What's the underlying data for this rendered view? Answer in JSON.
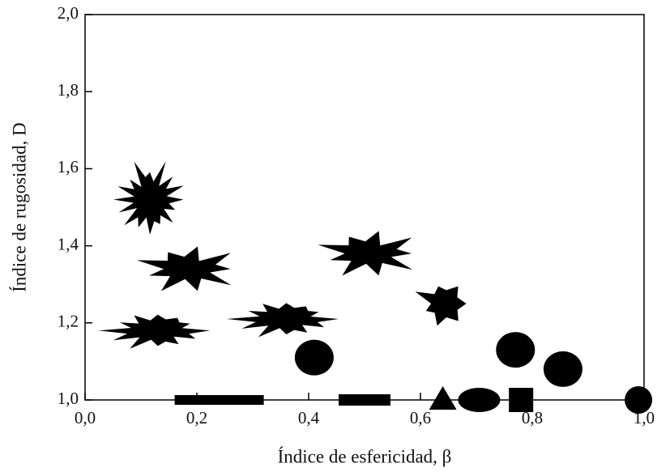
{
  "chart_data": {
    "type": "scatter",
    "xlabel": "Índice de esfericidad, β",
    "ylabel": "Índice de rugosidad, D",
    "x": [
      0.116,
      0.186,
      0.13,
      0.36,
      0.41,
      0.51,
      0.64,
      0.77,
      0.855,
      0.24,
      0.5,
      0.64,
      0.705,
      0.78,
      0.99
    ],
    "values": [
      1.52,
      1.34,
      1.18,
      1.21,
      1.11,
      1.38,
      1.25,
      1.13,
      1.08,
      1.0,
      1.0,
      1.0,
      1.0,
      1.0,
      1.0
    ],
    "markers": [
      "fractal",
      "spiky",
      "wavy",
      "wavy",
      "blob",
      "spiky",
      "lobed",
      "blob",
      "blob",
      "long-bar",
      "bar",
      "triangle",
      "ellipse",
      "square",
      "circle"
    ],
    "color": "#000000",
    "xlim": [
      0,
      1
    ],
    "ylim": [
      1,
      2
    ],
    "xticks": [
      {
        "value": 0,
        "label": "0,0"
      },
      {
        "value": 0.2,
        "label": "0,2"
      },
      {
        "value": 0.4,
        "label": "0,4"
      },
      {
        "value": 0.6,
        "label": "0,6"
      },
      {
        "value": 0.8,
        "label": "0,8"
      },
      {
        "value": 1,
        "label": "1,0"
      }
    ],
    "yticks": [
      {
        "value": 1,
        "label": "1,0"
      },
      {
        "value": 1.2,
        "label": "1,2"
      },
      {
        "value": 1.4,
        "label": "1,4"
      },
      {
        "value": 1.6,
        "label": "1,6"
      },
      {
        "value": 1.8,
        "label": "1,8"
      },
      {
        "value": 2,
        "label": "2,0"
      }
    ]
  }
}
